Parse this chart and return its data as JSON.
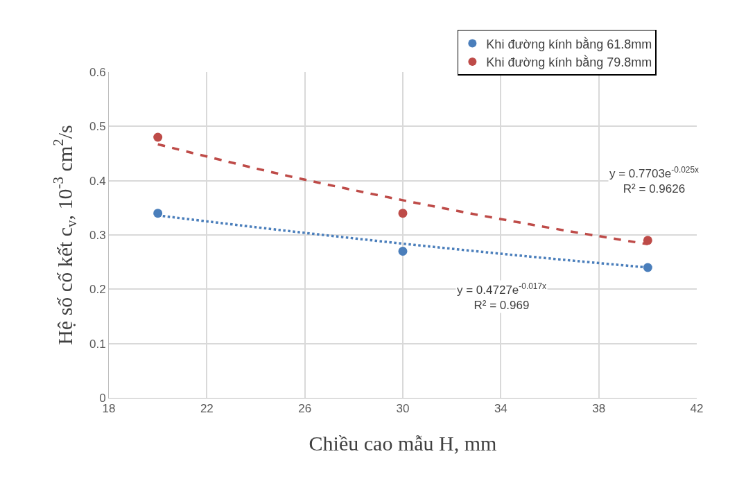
{
  "chart_data": {
    "type": "scatter",
    "xlabel": "Chiều cao mẫu H, mm",
    "ylabel": "Hệ số cố kết c$_{v}$, 10$^{-3}$ cm$^{2}$/s",
    "series": [
      {
        "name": "Khi đường kính bằng 61.8mm",
        "color": "#4a7ebb",
        "x": [
          20,
          30,
          40
        ],
        "values": [
          0.34,
          0.27,
          0.24
        ]
      },
      {
        "name": "Khi đường kính bằng 79.8mm",
        "color": "#be4b48",
        "x": [
          20,
          30,
          40
        ],
        "values": [
          0.48,
          0.34,
          0.29
        ]
      },
      {
        "type": "line",
        "color": "#4a7ebb",
        "line_style": "dotted",
        "marker": "none",
        "x": [
          20,
          25,
          30,
          35,
          40
        ],
        "values": [
          0.336,
          0.309,
          0.284,
          0.261,
          0.24
        ]
      },
      {
        "type": "line",
        "color": "#be4b48",
        "line_style": "dashed",
        "marker": "none",
        "x": [
          20,
          25,
          30,
          35,
          40
        ],
        "values": [
          0.467,
          0.412,
          0.364,
          0.321,
          0.283
        ]
      }
    ],
    "annotations": [
      "y = 0.7703e$^{-0.025x}$\nR² = 0.9626",
      "y = 0.4727e$^{-0.017x}$\nR² = 0.969"
    ],
    "xlim": [
      18,
      42
    ],
    "xticks": [
      18,
      22,
      26,
      30,
      34,
      38,
      42
    ],
    "ylim": [
      0,
      0.6
    ],
    "yticks": [
      0,
      0.1,
      0.2,
      0.3,
      0.4,
      0.5,
      0.6
    ],
    "grid": true,
    "legend": "top right",
    "marker": "circle"
  }
}
